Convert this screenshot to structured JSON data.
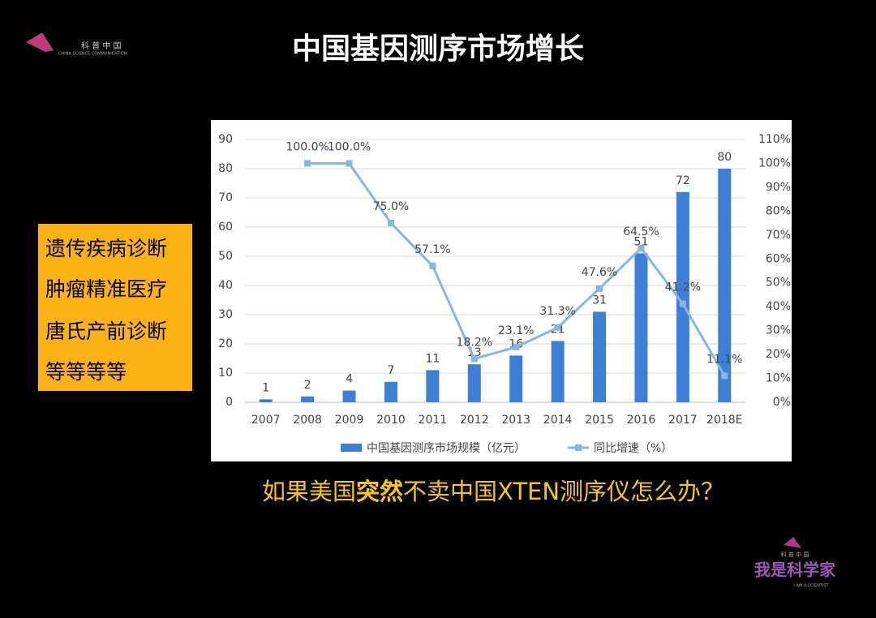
{
  "slide": {
    "title": "中国基因测序市场增长",
    "logo_top": {
      "name": "科 普 中 国",
      "subtitle": "CHINA SCIENCE COMMUNICATION"
    },
    "side_box": [
      "遗传疾病诊断",
      "肿瘤精准医疗",
      "唐氏产前诊断",
      "等等等等"
    ],
    "question": {
      "before": "如果美国",
      "emphasis": "突然",
      "after": "不卖中国XTEN测序仪怎么办？"
    },
    "logo_bottom": {
      "small": "科 普 中 国",
      "name": "我是科学家",
      "subtitle": "I AM A SCIENTIST"
    }
  },
  "chart_data": {
    "type": "bar-line",
    "categories": [
      "2007",
      "2008",
      "2009",
      "2010",
      "2011",
      "2012",
      "2013",
      "2014",
      "2015",
      "2016",
      "2017",
      "2018E"
    ],
    "series": [
      {
        "name": "中国基因测序市场规模（亿元）",
        "type": "bar",
        "color": "#3d7fd6",
        "values": [
          1,
          2,
          4,
          7,
          11,
          13,
          16,
          21,
          31,
          51,
          72,
          80
        ]
      },
      {
        "name": "同比增速（%）",
        "type": "line",
        "axis": "y2",
        "color": "#86b4e3",
        "values": [
          null,
          100.0,
          100.0,
          75.0,
          57.1,
          18.2,
          23.1,
          31.3,
          47.6,
          64.5,
          41.2,
          11.1
        ],
        "value_labels": [
          null,
          "100.0%",
          "100.0%",
          "75.0%",
          "57.1%",
          "18.2%",
          "23.1%",
          "31.3%",
          "47.6%",
          "64.5%",
          "41.2%",
          "11.1%"
        ]
      }
    ],
    "ylim": [
      0,
      90
    ],
    "yticks": [
      0,
      10,
      20,
      30,
      40,
      50,
      60,
      70,
      80,
      90
    ],
    "y2lim": [
      0,
      110
    ],
    "y2ticks": [
      {
        "value": 0,
        "label": "0%"
      },
      {
        "value": 10,
        "label": "10%"
      },
      {
        "value": 20,
        "label": "20%"
      },
      {
        "value": 30,
        "label": "30%"
      },
      {
        "value": 40,
        "label": "40%"
      },
      {
        "value": 50,
        "label": "50%"
      },
      {
        "value": 60,
        "label": "60%"
      },
      {
        "value": 70,
        "label": "70%"
      },
      {
        "value": 80,
        "label": "80%"
      },
      {
        "value": 90,
        "label": "90%"
      },
      {
        "value": 100,
        "label": "100%"
      },
      {
        "value": 110,
        "label": "110%"
      }
    ],
    "grid": true
  }
}
